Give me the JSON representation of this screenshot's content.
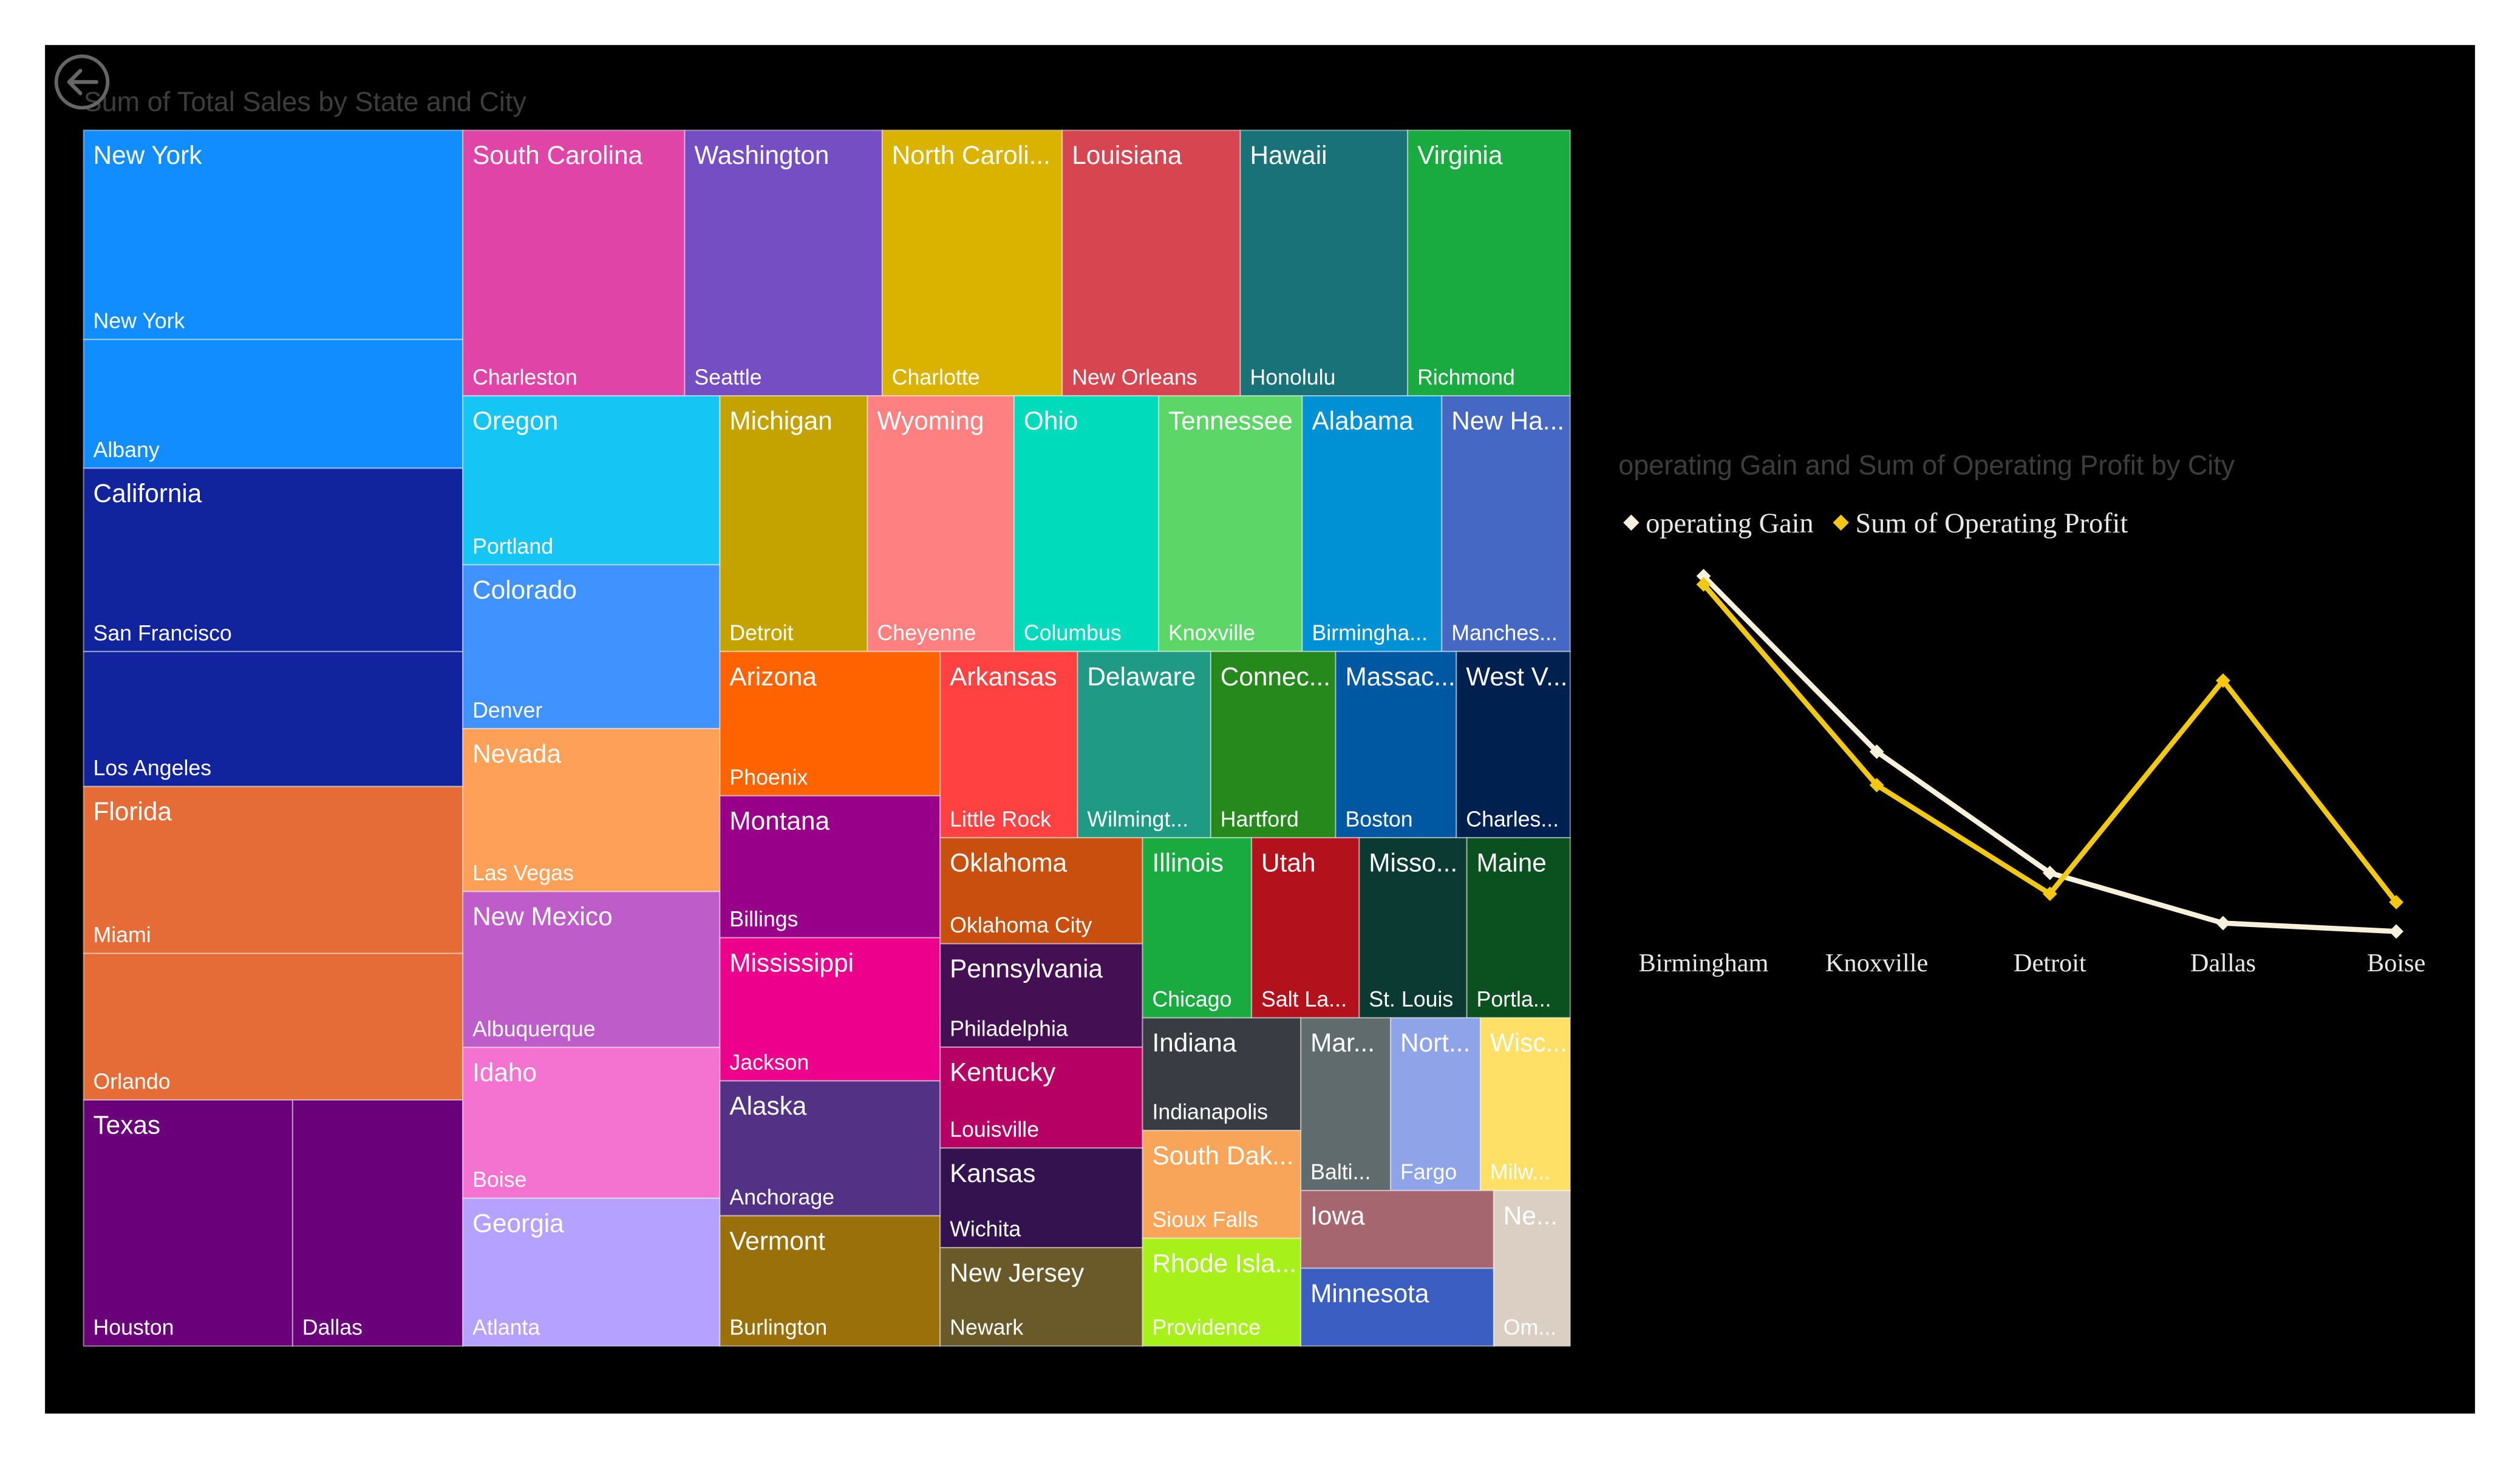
{
  "chart_data": [
    {
      "type": "treemap",
      "title": "Sum of Total Sales by State and City",
      "states": [
        {
          "name": "New York",
          "color": "#118dff",
          "cities": [
            {
              "name": "New York",
              "value": 307
            },
            {
              "name": "Albany",
              "value": 189
            }
          ]
        },
        {
          "name": "California",
          "color": "#12239e",
          "cities": [
            {
              "name": "San Francisco",
              "value": 269
            },
            {
              "name": "Los Angeles",
              "value": 198
            }
          ]
        },
        {
          "name": "Florida",
          "color": "#e66c37",
          "cities": [
            {
              "name": "Miami",
              "value": 245
            },
            {
              "name": "Orlando",
              "value": 215
            }
          ]
        },
        {
          "name": "Texas",
          "color": "#6b007b",
          "cities": [
            {
              "name": "Houston",
              "value": 199
            },
            {
              "name": "Dallas",
              "value": 162
            }
          ]
        },
        {
          "name": "South Carolina",
          "color": "#e044a7",
          "cities": [
            {
              "name": "Charleston",
              "value": 228
            }
          ]
        },
        {
          "name": "Washington",
          "color": "#744ec2",
          "cities": [
            {
              "name": "Seattle",
              "value": 203
            }
          ]
        },
        {
          "name": "North Caroli...",
          "color": "#d9b300",
          "cities": [
            {
              "name": "Charlotte",
              "value": 185
            }
          ]
        },
        {
          "name": "Louisiana",
          "color": "#d64550",
          "cities": [
            {
              "name": "New Orleans",
              "value": 183
            }
          ]
        },
        {
          "name": "Hawaii",
          "color": "#197278",
          "cities": [
            {
              "name": "Honolulu",
              "value": 172
            }
          ]
        },
        {
          "name": "Virginia",
          "color": "#1aab40",
          "cities": [
            {
              "name": "Richmond",
              "value": 167
            }
          ]
        },
        {
          "name": "Oregon",
          "color": "#15c6f4",
          "cities": [
            {
              "name": "Portland",
              "value": 168
            }
          ]
        },
        {
          "name": "Colorado",
          "color": "#4092ff",
          "cities": [
            {
              "name": "Denver",
              "value": 163
            }
          ]
        },
        {
          "name": "Nevada",
          "color": "#ffa058",
          "cities": [
            {
              "name": "Las Vegas",
              "value": 162
            }
          ]
        },
        {
          "name": "New Mexico",
          "color": "#be5dc9",
          "cities": [
            {
              "name": "Albuquerque",
              "value": 155
            }
          ]
        },
        {
          "name": "Idaho",
          "color": "#f472d0",
          "cities": [
            {
              "name": "Boise",
              "value": 150
            }
          ]
        },
        {
          "name": "Georgia",
          "color": "#b5a1ff",
          "cities": [
            {
              "name": "Atlanta",
              "value": 147
            }
          ]
        },
        {
          "name": "Michigan",
          "color": "#c4a200",
          "cities": [
            {
              "name": "Detroit",
              "value": 146
            }
          ]
        },
        {
          "name": "Wyoming",
          "color": "#ff8080",
          "cities": [
            {
              "name": "Cheyenne",
              "value": 145
            }
          ]
        },
        {
          "name": "Ohio",
          "color": "#00dbbc",
          "cities": [
            {
              "name": "Columbus",
              "value": 143
            }
          ]
        },
        {
          "name": "Tennessee",
          "color": "#5bd667",
          "cities": [
            {
              "name": "Knoxville",
              "value": 142
            }
          ]
        },
        {
          "name": "Alabama",
          "color": "#0091d5",
          "cities": [
            {
              "name": "Birmingha...",
              "value": 138
            }
          ]
        },
        {
          "name": "New Ha...",
          "color": "#4668c5",
          "cities": [
            {
              "name": "Manches...",
              "value": 127
            }
          ]
        },
        {
          "name": "Arizona",
          "color": "#ff6300",
          "cities": [
            {
              "name": "Phoenix",
              "value": 123
            }
          ]
        },
        {
          "name": "Montana",
          "color": "#99008a",
          "cities": [
            {
              "name": "Billings",
              "value": 121
            }
          ]
        },
        {
          "name": "Mississippi",
          "color": "#ec008c",
          "cities": [
            {
              "name": "Jackson",
              "value": 122
            }
          ]
        },
        {
          "name": "Alaska",
          "color": "#533285",
          "cities": [
            {
              "name": "Anchorage",
              "value": 115
            }
          ]
        },
        {
          "name": "Vermont",
          "color": "#99700a",
          "cities": [
            {
              "name": "Burlington",
              "value": 111
            }
          ]
        },
        {
          "name": "Arkansas",
          "color": "#ff4141",
          "cities": [
            {
              "name": "Little Rock",
              "value": 99
            }
          ]
        },
        {
          "name": "Delaware",
          "color": "#1f9a85",
          "cities": [
            {
              "name": "Wilmingt...",
              "value": 96
            }
          ]
        },
        {
          "name": "Connec...",
          "color": "#25891c",
          "cities": [
            {
              "name": "Hartford",
              "value": 90
            }
          ]
        },
        {
          "name": "Massac...",
          "color": "#0057a2",
          "cities": [
            {
              "name": "Boston",
              "value": 87
            }
          ]
        },
        {
          "name": "West V...",
          "color": "#002050",
          "cities": [
            {
              "name": "Charles...",
              "value": 82
            }
          ]
        },
        {
          "name": "Oklahoma",
          "color": "#c94f0f",
          "cities": [
            {
              "name": "Oklahoma City",
              "value": 83
            }
          ]
        },
        {
          "name": "Pennsylvania",
          "color": "#450f54",
          "cities": [
            {
              "name": "Philadelphia",
              "value": 81
            }
          ]
        },
        {
          "name": "Kentucky",
          "color": "#b60064",
          "cities": [
            {
              "name": "Louisville",
              "value": 79
            }
          ]
        },
        {
          "name": "Kansas",
          "color": "#34124f",
          "cities": [
            {
              "name": "Wichita",
              "value": 78
            }
          ]
        },
        {
          "name": "New Jersey",
          "color": "#6a5a29",
          "cities": [
            {
              "name": "Newark",
              "value": 77
            }
          ]
        },
        {
          "name": "Illinois",
          "color": "#1aab40",
          "cities": [
            {
              "name": "Chicago",
              "value": 76
            }
          ]
        },
        {
          "name": "Utah",
          "color": "#b3121d",
          "cities": [
            {
              "name": "Salt La...",
              "value": 75
            }
          ]
        },
        {
          "name": "Misso...",
          "color": "#0b3a32",
          "cities": [
            {
              "name": "St. Louis",
              "value": 75
            }
          ]
        },
        {
          "name": "Maine",
          "color": "#0b511f",
          "cities": [
            {
              "name": "Portla...",
              "value": 72
            }
          ]
        },
        {
          "name": "Indiana",
          "color": "#393c43",
          "cities": [
            {
              "name": "Indianapolis",
              "value": 69
            }
          ]
        },
        {
          "name": "South Dak...",
          "color": "#f8a55a",
          "cities": [
            {
              "name": "Sioux Falls",
              "value": 66
            }
          ]
        },
        {
          "name": "Rhode Isla...",
          "color": "#a8f01a",
          "cities": [
            {
              "name": "Providence",
              "value": 66
            }
          ]
        },
        {
          "name": "Mar...",
          "color": "#5f6b6d",
          "cities": [
            {
              "name": "Balti...",
              "value": 60
            }
          ]
        },
        {
          "name": "Nort...",
          "color": "#8ea3e8",
          "cities": [
            {
              "name": "Fargo",
              "value": 60
            }
          ]
        },
        {
          "name": "Wisc...",
          "color": "#ffe066",
          "cities": [
            {
              "name": "Milw...",
              "value": 60
            }
          ]
        },
        {
          "name": "Iowa",
          "color": "#a66670",
          "cities": [
            {
              "name": null,
              "value": 58
            }
          ]
        },
        {
          "name": "Minnesota",
          "color": "#3a5ec2",
          "cities": [
            {
              "name": null,
              "value": 58
            }
          ]
        },
        {
          "name": "Ne...",
          "color": "#dbcfc3",
          "cities": [
            {
              "name": "Om...",
              "value": 46
            }
          ]
        }
      ]
    },
    {
      "type": "line",
      "title": "operating Gain and Sum of Operating Profit by City",
      "categories": [
        "Birmingham",
        "Knoxville",
        "Detroit",
        "Dallas",
        "Boise"
      ],
      "ylim": [
        0,
        100
      ],
      "series": [
        {
          "name": "operating Gain",
          "color": "#f7f1dc",
          "values": [
            93,
            51,
            22,
            10,
            8
          ]
        },
        {
          "name": "Sum of Operating Profit",
          "color": "#f2c811",
          "values": [
            91,
            43,
            17,
            68,
            15
          ]
        }
      ]
    }
  ]
}
